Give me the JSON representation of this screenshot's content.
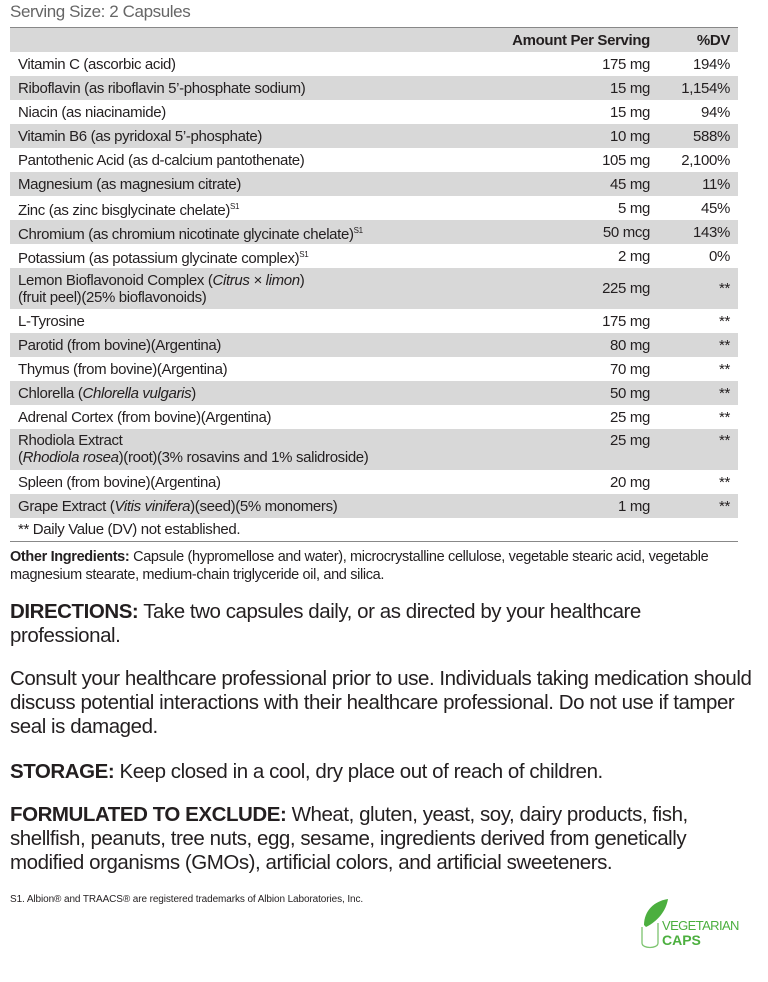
{
  "serving_size": "Serving Size: 2 Capsules",
  "table": {
    "headers": {
      "amount": "Amount Per Serving",
      "dv": "%DV"
    },
    "rows": [
      {
        "name": [
          {
            "t": "Vitamin C (ascorbic acid)"
          }
        ],
        "amount": "175 mg",
        "dv": "194%"
      },
      {
        "name": [
          {
            "t": "Riboflavin (as riboflavin 5’-phosphate sodium)"
          }
        ],
        "amount": "15 mg",
        "dv": "1,154%"
      },
      {
        "name": [
          {
            "t": "Niacin (as niacinamide)"
          }
        ],
        "amount": "15 mg",
        "dv": "94%"
      },
      {
        "name": [
          {
            "t": "Vitamin B6 (as pyridoxal 5’-phosphate)"
          }
        ],
        "amount": "10 mg",
        "dv": "588%"
      },
      {
        "name": [
          {
            "t": "Pantothenic Acid (as d-calcium pantothenate)"
          }
        ],
        "amount": "105 mg",
        "dv": "2,100%"
      },
      {
        "name": [
          {
            "t": "Magnesium (as magnesium citrate)"
          }
        ],
        "amount": "45 mg",
        "dv": "11%"
      },
      {
        "name": [
          {
            "t": "Zinc (as zinc bisglycinate chelate)"
          },
          {
            "t": "S1",
            "sup": true
          }
        ],
        "amount": "5 mg",
        "dv": "45%"
      },
      {
        "name": [
          {
            "t": "Chromium (as chromium nicotinate glycinate chelate)"
          },
          {
            "t": "S1",
            "sup": true
          }
        ],
        "amount": "50 mcg",
        "dv": "143%"
      },
      {
        "name": [
          {
            "t": "Potassium (as potassium glycinate complex)"
          },
          {
            "t": "S1",
            "sup": true
          }
        ],
        "amount": "2 mg",
        "dv": "0%"
      },
      {
        "name": [
          {
            "t": "Lemon Bioflavonoid Complex ("
          },
          {
            "t": "Citrus × limon",
            "i": true
          },
          {
            "t": ")"
          },
          {
            "br": true
          },
          {
            "t": "(fruit peel)(25% bioflavonoids)"
          }
        ],
        "amount": "225 mg",
        "dv": "**"
      },
      {
        "name": [
          {
            "t": "L-Tyrosine"
          }
        ],
        "amount": "175 mg",
        "dv": "**"
      },
      {
        "name": [
          {
            "t": "Parotid (from bovine)(Argentina)"
          }
        ],
        "amount": "80 mg",
        "dv": "**"
      },
      {
        "name": [
          {
            "t": "Thymus (from bovine)(Argentina)"
          }
        ],
        "amount": "70 mg",
        "dv": "**"
      },
      {
        "name": [
          {
            "t": "Chlorella ("
          },
          {
            "t": "Chlorella vulgaris",
            "i": true
          },
          {
            "t": ")"
          }
        ],
        "amount": "50 mg",
        "dv": "**"
      },
      {
        "name": [
          {
            "t": "Adrenal Cortex (from bovine)(Argentina)"
          }
        ],
        "amount": "25 mg",
        "dv": "**"
      },
      {
        "name": [
          {
            "t": "Rhodiola Extract"
          },
          {
            "br": true
          },
          {
            "t": "("
          },
          {
            "t": "Rhodiola rosea",
            "i": true
          },
          {
            "t": ")(root)(3% rosavins and 1% salidroside)"
          }
        ],
        "amount": "25 mg",
        "dv": "**"
      },
      {
        "name": [
          {
            "t": "Spleen (from bovine)(Argentina)"
          }
        ],
        "amount": "20 mg",
        "dv": "**"
      },
      {
        "name": [
          {
            "t": "Grape Extract ("
          },
          {
            "t": "Vitis vinifera",
            "i": true
          },
          {
            "t": ")(seed)(5% monomers)"
          }
        ],
        "amount": "1 mg",
        "dv": "**"
      }
    ],
    "footnote": "** Daily Value (DV) not established."
  },
  "other_ingredients": {
    "label": "Other Ingredients:",
    "text": " Capsule (hypromellose and water), microcrystalline cellulose, vegetable stearic acid, vegetable magnesium stearate, medium-chain triglyceride oil, and silica."
  },
  "directions": {
    "label": "DIRECTIONS:",
    "text": " Take two capsules daily, or as directed by your healthcare professional."
  },
  "warning": "Consult your healthcare professional prior to use. Individuals taking medication should discuss potential interactions with their healthcare professional. Do not use if tamper seal is damaged.",
  "storage": {
    "label": "STORAGE:",
    "text": " Keep closed in a cool, dry place out of reach of children."
  },
  "exclude": {
    "label": "FORMULATED TO EXCLUDE:",
    "text": " Wheat, gluten, yeast, soy, dairy products, fish, shellfish, peanuts, tree nuts, egg, sesame, ingredients derived from genetically modified organisms (GMOs), artificial colors, and artificial sweeteners."
  },
  "trademark": "S1. Albion® and TRAACS® are registered trademarks of Albion Laboratories, Inc.",
  "logo": {
    "line1": "VEGETARIAN",
    "line2": "CAPS",
    "color": "#4caf3f"
  }
}
